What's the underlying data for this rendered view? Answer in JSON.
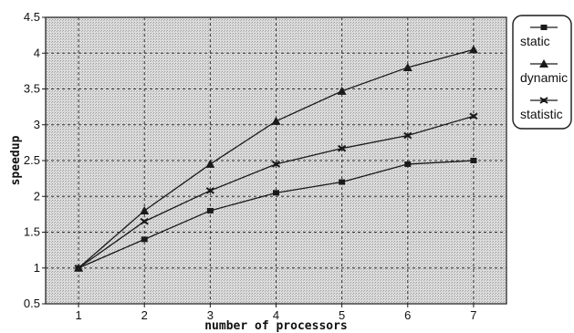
{
  "chart_data": {
    "type": "line",
    "title": "",
    "xlabel": "number of processors",
    "ylabel": "speedup",
    "x": [
      1,
      2,
      3,
      4,
      5,
      6,
      7
    ],
    "xlim": [
      0.5,
      7.5
    ],
    "ylim": [
      0.5,
      4.5
    ],
    "x_ticks": [
      "1",
      "2",
      "3",
      "4",
      "5",
      "6",
      "7"
    ],
    "y_ticks": [
      "0.5",
      "1",
      "1.5",
      "2",
      "2.5",
      "3",
      "3.5",
      "4",
      "4.5"
    ],
    "grid": true,
    "legend_position": "right",
    "series": [
      {
        "name": "static",
        "marker": "square",
        "values": [
          1.0,
          1.4,
          1.8,
          2.05,
          2.2,
          2.45,
          2.5
        ]
      },
      {
        "name": "dynamic",
        "marker": "triangle",
        "values": [
          1.0,
          1.8,
          2.45,
          3.05,
          3.47,
          3.8,
          4.05
        ]
      },
      {
        "name": "statistic",
        "marker": "cross",
        "values": [
          1.0,
          1.65,
          2.08,
          2.45,
          2.67,
          2.85,
          3.12
        ]
      }
    ],
    "colors": {
      "line": "#1a1a1a",
      "plot_background": "#d6d6d6",
      "grid": "#333333"
    }
  }
}
